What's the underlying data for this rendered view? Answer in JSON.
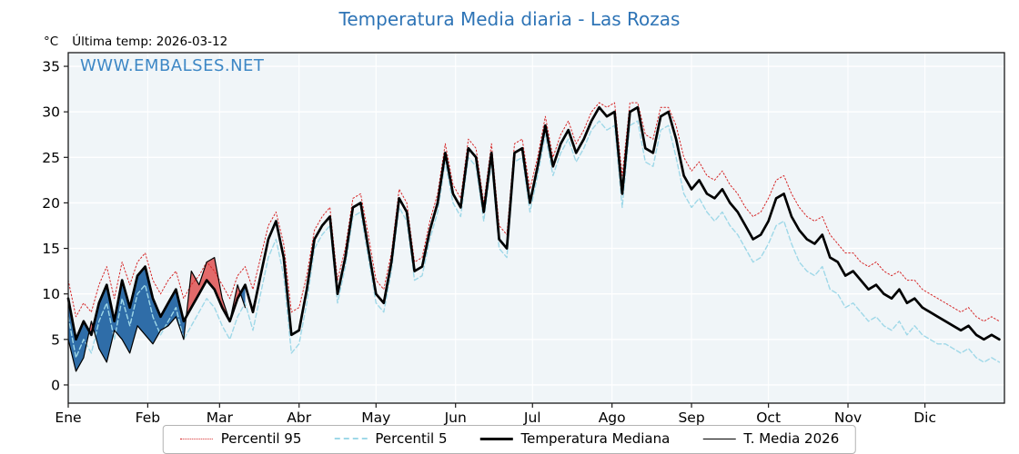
{
  "header": {
    "title": "Temperatura Media diaria - Las Rozas",
    "unit_label": "°C",
    "last_temp_label": "Última temp: 2026-03-12",
    "watermark": "WWW.EMBALSES.NET"
  },
  "legend": [
    {
      "label": "Percentil 95",
      "style": "dotted-red"
    },
    {
      "label": "Percentil 5",
      "style": "dashed-lightblue"
    },
    {
      "label": "Temperatura Mediana",
      "style": "thick-black"
    },
    {
      "label": "T. Media 2026",
      "style": "thin-black"
    }
  ],
  "colors": {
    "title": "#2e74b6",
    "watermark": "#3d87c5",
    "p95": "#d62728",
    "p5": "#9fd8e8",
    "median": "#000000",
    "t2026": "#000000",
    "fill_above": "#e26a6a",
    "fill_below": "#2f6da8",
    "plot_bg": "#f0f5f8",
    "grid": "#ffffff",
    "frame": "#1a1a1a"
  },
  "chart_data": {
    "type": "line",
    "title": "Temperatura Media diaria - Las Rozas",
    "xlabel": "",
    "ylabel": "°C",
    "ylim": [
      -2,
      36.5
    ],
    "yticks": [
      0,
      5,
      10,
      15,
      20,
      25,
      30,
      35
    ],
    "days_total": 365,
    "x_step_days": 3,
    "month_labels": [
      "Ene",
      "Feb",
      "Mar",
      "Abr",
      "May",
      "Jun",
      "Jul",
      "Ago",
      "Sep",
      "Oct",
      "Nov",
      "Dic"
    ],
    "month_start_days": [
      0,
      31,
      59,
      90,
      120,
      151,
      181,
      212,
      243,
      273,
      304,
      334
    ],
    "series": [
      {
        "name": "Percentil 95",
        "values": [
          11.5,
          7.5,
          9.0,
          8.0,
          11.0,
          13.0,
          9.5,
          13.5,
          11.0,
          13.5,
          14.5,
          11.5,
          10.0,
          11.5,
          12.5,
          9.5,
          11.0,
          12.0,
          13.5,
          12.5,
          11.0,
          9.5,
          12.0,
          13.0,
          10.5,
          14.0,
          17.5,
          19.0,
          15.5,
          8.0,
          8.5,
          12.0,
          17.0,
          18.5,
          19.5,
          11.5,
          15.0,
          20.5,
          21.0,
          16.5,
          11.5,
          10.5,
          14.5,
          21.5,
          20.0,
          13.5,
          14.0,
          18.0,
          21.0,
          26.5,
          22.0,
          20.5,
          27.0,
          26.0,
          20.0,
          26.5,
          17.5,
          16.5,
          26.5,
          27.0,
          21.5,
          25.0,
          29.5,
          25.0,
          27.5,
          29.0,
          26.5,
          28.0,
          30.0,
          31.0,
          30.5,
          31.0,
          23.0,
          31.0,
          31.0,
          27.5,
          27.0,
          30.5,
          30.5,
          28.5,
          25.0,
          23.5,
          24.5,
          23.0,
          22.5,
          23.5,
          22.0,
          21.0,
          19.5,
          18.5,
          19.0,
          20.5,
          22.5,
          23.0,
          21.0,
          19.5,
          18.5,
          18.0,
          18.5,
          16.5,
          15.5,
          14.5,
          14.5,
          13.5,
          13.0,
          13.5,
          12.5,
          12.0,
          12.5,
          11.5,
          11.5,
          10.5,
          10.0,
          9.5,
          9.0,
          8.5,
          8.0,
          8.5,
          7.5,
          7.0,
          7.5,
          7.0
        ]
      },
      {
        "name": "Percentil 5",
        "values": [
          7.5,
          3.0,
          5.0,
          3.5,
          7.0,
          9.0,
          5.0,
          9.5,
          6.5,
          10.0,
          11.0,
          7.5,
          5.5,
          7.0,
          8.5,
          5.0,
          6.5,
          8.0,
          9.5,
          8.5,
          6.5,
          5.0,
          7.5,
          9.0,
          6.0,
          10.0,
          14.0,
          16.0,
          12.0,
          3.5,
          4.5,
          9.0,
          15.0,
          16.5,
          17.5,
          9.0,
          13.0,
          18.5,
          19.0,
          14.0,
          9.0,
          8.0,
          12.5,
          19.5,
          18.0,
          11.5,
          12.0,
          16.0,
          19.0,
          24.5,
          20.0,
          18.5,
          25.0,
          24.0,
          18.0,
          24.5,
          15.0,
          14.0,
          24.5,
          25.0,
          19.0,
          23.0,
          27.5,
          23.0,
          25.5,
          27.0,
          24.5,
          26.0,
          28.0,
          29.0,
          28.0,
          28.5,
          19.5,
          28.5,
          29.0,
          24.5,
          24.0,
          28.0,
          28.5,
          25.0,
          21.0,
          19.5,
          20.5,
          19.0,
          18.0,
          19.0,
          17.5,
          16.5,
          15.0,
          13.5,
          14.0,
          15.5,
          17.5,
          18.0,
          15.5,
          13.5,
          12.5,
          12.0,
          13.0,
          10.5,
          10.0,
          8.5,
          9.0,
          8.0,
          7.0,
          7.5,
          6.5,
          6.0,
          7.0,
          5.5,
          6.5,
          5.5,
          5.0,
          4.5,
          4.5,
          4.0,
          3.5,
          4.0,
          3.0,
          2.5,
          3.0,
          2.5
        ]
      },
      {
        "name": "Temperatura Mediana",
        "values": [
          9.5,
          5.0,
          7.0,
          5.5,
          9.0,
          11.0,
          7.0,
          11.5,
          8.5,
          12.0,
          13.0,
          9.5,
          7.5,
          9.0,
          10.5,
          7.0,
          8.5,
          10.0,
          11.5,
          10.5,
          8.5,
          7.0,
          9.5,
          11.0,
          8.0,
          12.0,
          16.0,
          18.0,
          14.0,
          5.5,
          6.0,
          10.5,
          16.0,
          17.5,
          18.5,
          10.0,
          14.0,
          19.5,
          20.0,
          15.0,
          10.0,
          9.0,
          13.5,
          20.5,
          19.0,
          12.5,
          13.0,
          17.0,
          20.0,
          25.5,
          21.0,
          19.5,
          26.0,
          25.0,
          19.0,
          25.5,
          16.0,
          15.0,
          25.5,
          26.0,
          20.0,
          24.0,
          28.5,
          24.0,
          26.5,
          28.0,
          25.5,
          27.0,
          29.0,
          30.5,
          29.5,
          30.0,
          21.0,
          30.0,
          30.5,
          26.0,
          25.5,
          29.5,
          30.0,
          27.0,
          23.0,
          21.5,
          22.5,
          21.0,
          20.5,
          21.5,
          20.0,
          19.0,
          17.5,
          16.0,
          16.5,
          18.0,
          20.5,
          21.0,
          18.5,
          17.0,
          16.0,
          15.5,
          16.5,
          14.0,
          13.5,
          12.0,
          12.5,
          11.5,
          10.5,
          11.0,
          10.0,
          9.5,
          10.5,
          9.0,
          9.5,
          8.5,
          8.0,
          7.5,
          7.0,
          6.5,
          6.0,
          6.5,
          5.5,
          5.0,
          5.5,
          5.0
        ]
      },
      {
        "name": "T. Media 2026",
        "values": [
          5.0,
          1.5,
          3.0,
          7.0,
          4.0,
          2.5,
          6.0,
          5.0,
          3.5,
          6.5,
          5.5,
          4.5,
          6.0,
          6.5,
          7.5,
          5.0,
          12.5,
          11.0,
          13.5,
          14.0,
          9.5,
          7.0,
          11.0,
          8.5
        ]
      }
    ]
  }
}
